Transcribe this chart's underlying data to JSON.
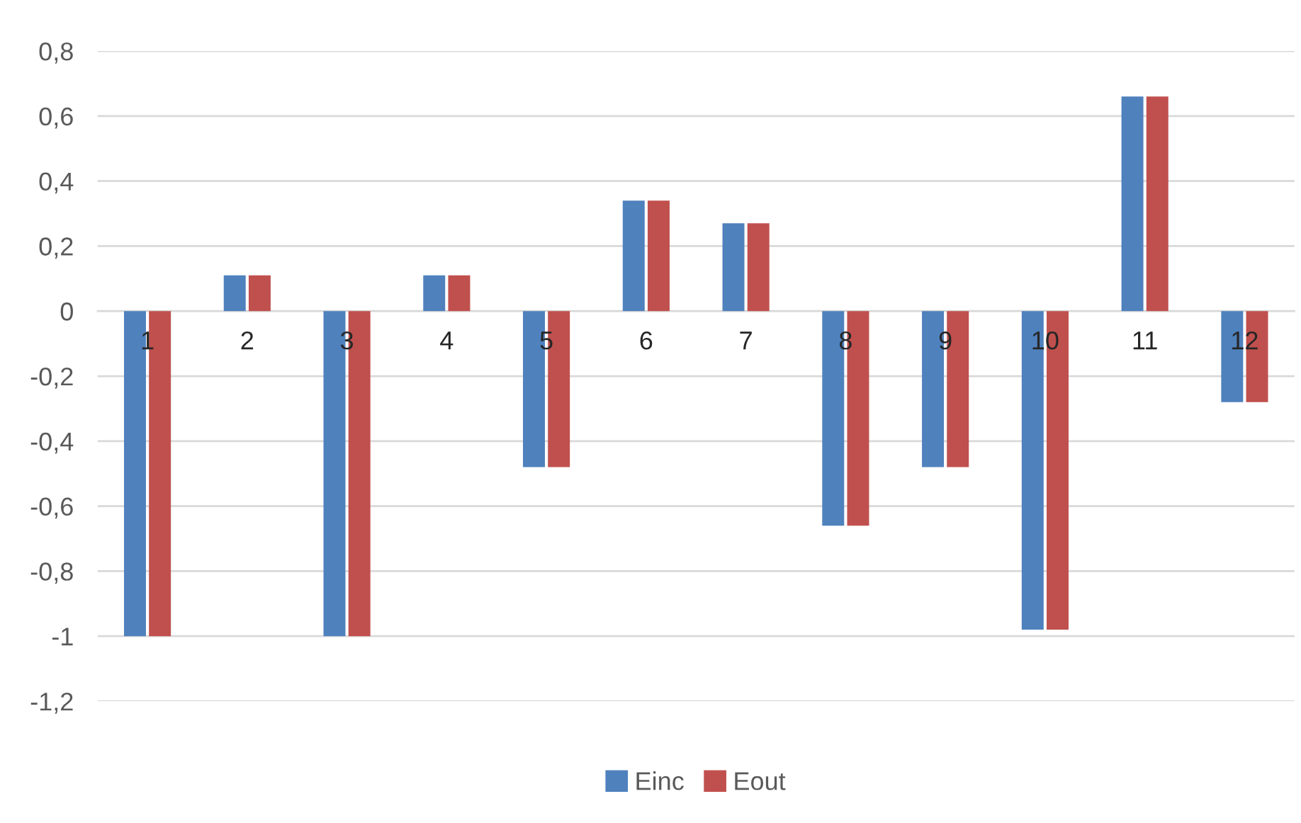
{
  "chart_data": {
    "type": "bar",
    "categories": [
      "1",
      "2",
      "3",
      "4",
      "5",
      "6",
      "7",
      "8",
      "9",
      "10",
      "11",
      "12"
    ],
    "series": [
      {
        "name": "Einc",
        "color": "#4f81bd",
        "values": [
          -1,
          0.11,
          -1,
          0.11,
          -0.48,
          0.34,
          0.27,
          -0.66,
          -0.48,
          -0.98,
          0.66,
          -0.28
        ]
      },
      {
        "name": "Eout",
        "color": "#c0504d",
        "values": [
          -1,
          0.11,
          -1,
          0.11,
          -0.48,
          0.34,
          0.27,
          -0.66,
          -0.48,
          -0.98,
          0.66,
          -0.28
        ]
      }
    ],
    "ylim": [
      -1.2,
      0.8
    ],
    "yticks": [
      {
        "value": -1.2,
        "label": "-1,2"
      },
      {
        "value": -1,
        "label": "-1"
      },
      {
        "value": -0.8,
        "label": "-0,8"
      },
      {
        "value": -0.6,
        "label": "-0,6"
      },
      {
        "value": -0.4,
        "label": "-0,4"
      },
      {
        "value": -0.2,
        "label": "-0,2"
      },
      {
        "value": 0,
        "label": "0"
      },
      {
        "value": 0.2,
        "label": "0,2"
      },
      {
        "value": 0.4,
        "label": "0,4"
      },
      {
        "value": 0.6,
        "label": "0,6"
      },
      {
        "value": 0.8,
        "label": "0,8"
      }
    ],
    "grid": "y",
    "legend": "bottom"
  }
}
